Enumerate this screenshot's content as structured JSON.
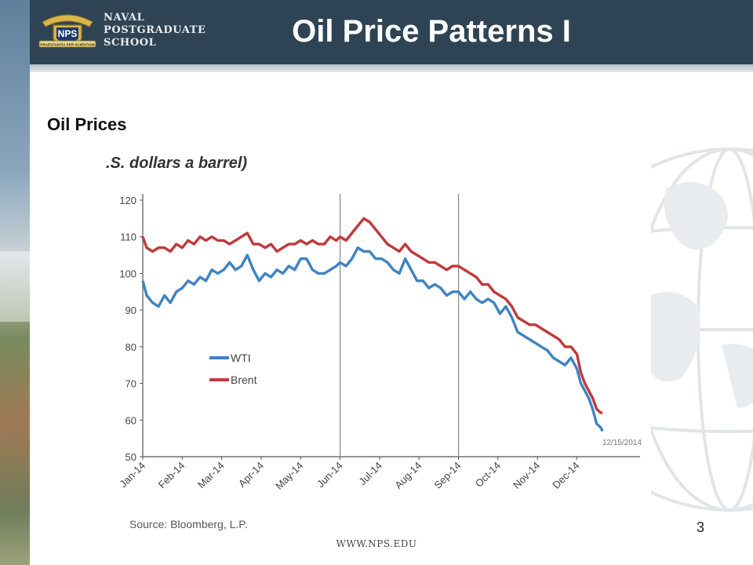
{
  "header": {
    "logo_badge": "NPS",
    "logo_banner": "PRAESTANTIA PER SCIENTIAM",
    "logo_lines": [
      "NAVAL",
      "POSTGRADUATE",
      "SCHOOL"
    ],
    "title": "Oil Price Patterns I"
  },
  "subtitle": "Oil Prices",
  "slide_number": "3",
  "footer_url": "WWW.NPS.EDU",
  "colors": {
    "header_bg": "#2e4454",
    "wti": "#3f83c3",
    "brent": "#c0393b"
  },
  "chart_data": {
    "type": "line",
    "title": "",
    "ylabel": ".S. dollars a barrel)",
    "xlabel": "",
    "ylim": [
      50,
      120
    ],
    "yticks": [
      120,
      110,
      100,
      90,
      80,
      70,
      60,
      50
    ],
    "xlim": [
      0,
      12.6
    ],
    "categories": [
      "Jan-14",
      "Feb-14",
      "Mar-14",
      "Apr-14",
      "May-14",
      "Jun-14",
      "Jul-14",
      "Aug-14",
      "Sep-14",
      "Oct-14",
      "Nov-14",
      "Dec-14"
    ],
    "vlines": [
      5,
      8
    ],
    "date_annotation": "12/15/2014",
    "source": "Source: Bloomberg, L.P.",
    "legend_position": "center-left",
    "series": [
      {
        "name": "WTI",
        "color": "#3f83c3",
        "points": [
          [
            0,
            98
          ],
          [
            0.1,
            94
          ],
          [
            0.25,
            92
          ],
          [
            0.4,
            91
          ],
          [
            0.55,
            94
          ],
          [
            0.7,
            92
          ],
          [
            0.85,
            95
          ],
          [
            1,
            96
          ],
          [
            1.15,
            98
          ],
          [
            1.3,
            97
          ],
          [
            1.45,
            99
          ],
          [
            1.6,
            98
          ],
          [
            1.75,
            101
          ],
          [
            1.9,
            100
          ],
          [
            2.05,
            101
          ],
          [
            2.2,
            103
          ],
          [
            2.35,
            101
          ],
          [
            2.5,
            102
          ],
          [
            2.65,
            105
          ],
          [
            2.8,
            101
          ],
          [
            2.95,
            98
          ],
          [
            3.1,
            100
          ],
          [
            3.25,
            99
          ],
          [
            3.4,
            101
          ],
          [
            3.55,
            100
          ],
          [
            3.7,
            102
          ],
          [
            3.85,
            101
          ],
          [
            4,
            104
          ],
          [
            4.15,
            104
          ],
          [
            4.3,
            101
          ],
          [
            4.45,
            100
          ],
          [
            4.6,
            100
          ],
          [
            4.75,
            101
          ],
          [
            4.9,
            102
          ],
          [
            5,
            103
          ],
          [
            5.15,
            102
          ],
          [
            5.3,
            104
          ],
          [
            5.45,
            107
          ],
          [
            5.6,
            106
          ],
          [
            5.75,
            106
          ],
          [
            5.9,
            104
          ],
          [
            6.05,
            104
          ],
          [
            6.2,
            103
          ],
          [
            6.35,
            101
          ],
          [
            6.5,
            100
          ],
          [
            6.65,
            104
          ],
          [
            6.8,
            101
          ],
          [
            6.95,
            98
          ],
          [
            7.1,
            98
          ],
          [
            7.25,
            96
          ],
          [
            7.4,
            97
          ],
          [
            7.55,
            96
          ],
          [
            7.7,
            94
          ],
          [
            7.85,
            95
          ],
          [
            8,
            95
          ],
          [
            8.15,
            93
          ],
          [
            8.3,
            95
          ],
          [
            8.45,
            93
          ],
          [
            8.6,
            92
          ],
          [
            8.75,
            93
          ],
          [
            8.9,
            92
          ],
          [
            9.05,
            89
          ],
          [
            9.2,
            91
          ],
          [
            9.35,
            88
          ],
          [
            9.5,
            84
          ],
          [
            9.65,
            83
          ],
          [
            9.8,
            82
          ],
          [
            9.95,
            81
          ],
          [
            10.1,
            80
          ],
          [
            10.25,
            79
          ],
          [
            10.4,
            77
          ],
          [
            10.55,
            76
          ],
          [
            10.7,
            75
          ],
          [
            10.85,
            77
          ],
          [
            11,
            74
          ],
          [
            11.1,
            70
          ],
          [
            11.2,
            68
          ],
          [
            11.3,
            66
          ],
          [
            11.4,
            63
          ],
          [
            11.5,
            59
          ],
          [
            11.6,
            58
          ],
          [
            11.65,
            57
          ]
        ]
      },
      {
        "name": "Brent",
        "color": "#c0393b",
        "points": [
          [
            0,
            110
          ],
          [
            0.1,
            107
          ],
          [
            0.25,
            106
          ],
          [
            0.4,
            107
          ],
          [
            0.55,
            107
          ],
          [
            0.7,
            106
          ],
          [
            0.85,
            108
          ],
          [
            1,
            107
          ],
          [
            1.15,
            109
          ],
          [
            1.3,
            108
          ],
          [
            1.45,
            110
          ],
          [
            1.6,
            109
          ],
          [
            1.75,
            110
          ],
          [
            1.9,
            109
          ],
          [
            2.05,
            109
          ],
          [
            2.2,
            108
          ],
          [
            2.35,
            109
          ],
          [
            2.5,
            110
          ],
          [
            2.65,
            111
          ],
          [
            2.8,
            108
          ],
          [
            2.95,
            108
          ],
          [
            3.1,
            107
          ],
          [
            3.25,
            108
          ],
          [
            3.4,
            106
          ],
          [
            3.55,
            107
          ],
          [
            3.7,
            108
          ],
          [
            3.85,
            108
          ],
          [
            4,
            109
          ],
          [
            4.15,
            108
          ],
          [
            4.3,
            109
          ],
          [
            4.45,
            108
          ],
          [
            4.6,
            108
          ],
          [
            4.75,
            110
          ],
          [
            4.9,
            109
          ],
          [
            5,
            110
          ],
          [
            5.15,
            109
          ],
          [
            5.3,
            111
          ],
          [
            5.45,
            113
          ],
          [
            5.6,
            115
          ],
          [
            5.75,
            114
          ],
          [
            5.9,
            112
          ],
          [
            6.05,
            110
          ],
          [
            6.2,
            108
          ],
          [
            6.35,
            107
          ],
          [
            6.5,
            106
          ],
          [
            6.65,
            108
          ],
          [
            6.8,
            106
          ],
          [
            6.95,
            105
          ],
          [
            7.1,
            104
          ],
          [
            7.25,
            103
          ],
          [
            7.4,
            103
          ],
          [
            7.55,
            102
          ],
          [
            7.7,
            101
          ],
          [
            7.85,
            102
          ],
          [
            8,
            102
          ],
          [
            8.15,
            101
          ],
          [
            8.3,
            100
          ],
          [
            8.45,
            99
          ],
          [
            8.6,
            97
          ],
          [
            8.75,
            97
          ],
          [
            8.9,
            95
          ],
          [
            9.05,
            94
          ],
          [
            9.2,
            93
          ],
          [
            9.35,
            91
          ],
          [
            9.5,
            88
          ],
          [
            9.65,
            87
          ],
          [
            9.8,
            86
          ],
          [
            9.95,
            86
          ],
          [
            10.1,
            85
          ],
          [
            10.25,
            84
          ],
          [
            10.4,
            83
          ],
          [
            10.55,
            82
          ],
          [
            10.7,
            80
          ],
          [
            10.85,
            80
          ],
          [
            11,
            78
          ],
          [
            11.1,
            73
          ],
          [
            11.2,
            70
          ],
          [
            11.3,
            68
          ],
          [
            11.4,
            66
          ],
          [
            11.5,
            63
          ],
          [
            11.6,
            62
          ],
          [
            11.65,
            62
          ]
        ]
      }
    ]
  }
}
